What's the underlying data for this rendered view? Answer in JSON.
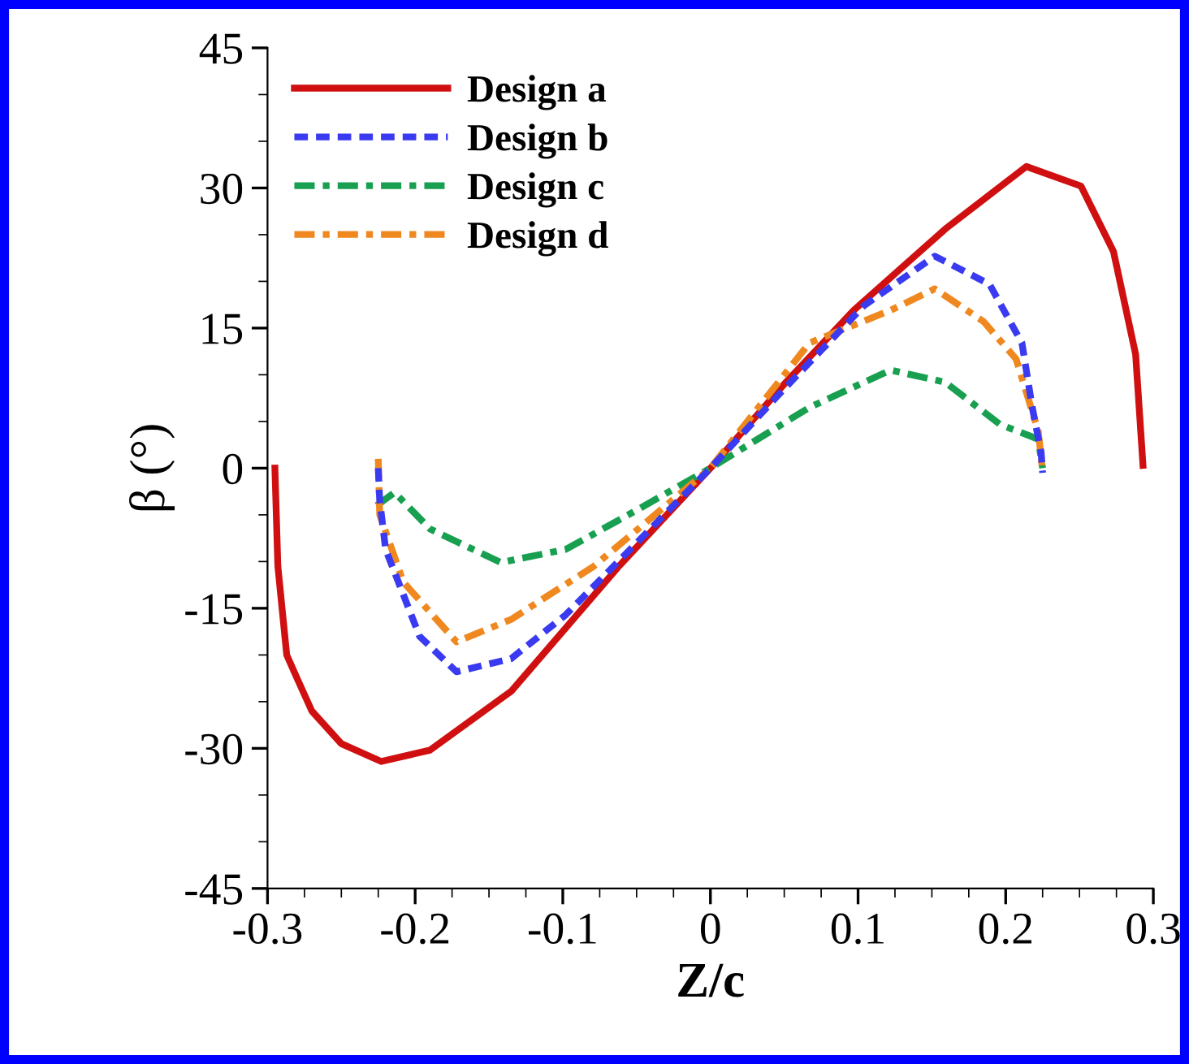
{
  "chart_data": {
    "type": "line",
    "xlabel": "Z/c",
    "ylabel": "β (°)",
    "xlim": [
      -0.3,
      0.3
    ],
    "xticks": [
      -0.3,
      -0.2,
      -0.1,
      0,
      0.1,
      0.2,
      0.3
    ],
    "ylim": [
      -45,
      45
    ],
    "yticks": [
      -45,
      -30,
      -15,
      0,
      15,
      30,
      45
    ],
    "grid": false,
    "legend": "top left",
    "marker": "none",
    "series": [
      {
        "name": "Design a",
        "color": "#d01010",
        "line_style": "solid",
        "x": [
          -0.295,
          -0.293,
          -0.287,
          -0.28,
          -0.27,
          -0.25,
          -0.223,
          -0.19,
          -0.135,
          -0.062,
          0,
          0.05,
          0.097,
          0.159,
          0.214,
          0.251,
          0.273,
          0.288,
          0.293
        ],
        "values": [
          0,
          -10.5,
          -20,
          -22.5,
          -26,
          -29.5,
          -31.4,
          -30.2,
          -23.9,
          -10.5,
          0,
          9,
          16.9,
          25.6,
          32.3,
          30.2,
          23.2,
          12.2,
          0.3
        ]
      },
      {
        "name": "Design b",
        "color": "#3a3af0",
        "line_style": "dashed",
        "x": [
          -0.225,
          -0.224,
          -0.22,
          -0.197,
          -0.172,
          -0.135,
          -0.098,
          -0.05,
          0,
          0.05,
          0.104,
          0.152,
          0.189,
          0.211,
          0.218,
          0.224,
          0.225
        ],
        "values": [
          0,
          -3.5,
          -8.7,
          -18,
          -21.8,
          -20.4,
          -15.7,
          -8,
          0,
          8.5,
          17.4,
          22.7,
          19.7,
          13.4,
          6.5,
          1.7,
          -0.5
        ]
      },
      {
        "name": "Design c",
        "color": "#18a050",
        "line_style": "dashdot",
        "x": [
          -0.226,
          -0.214,
          -0.19,
          -0.142,
          -0.098,
          -0.05,
          0,
          0.067,
          0.122,
          0.159,
          0.196,
          0.222,
          0.225
        ],
        "values": [
          -4,
          -2.6,
          -6.5,
          -10.1,
          -8.7,
          -4.5,
          0,
          6.5,
          10.5,
          9.2,
          4.7,
          3.1,
          0
        ]
      },
      {
        "name": "Design d",
        "color": "#f08820",
        "line_style": "dashdot",
        "x": [
          -0.225,
          -0.224,
          -0.208,
          -0.172,
          -0.135,
          -0.079,
          0,
          0.067,
          0.122,
          0.152,
          0.185,
          0.207,
          0.222,
          0.225
        ],
        "values": [
          1,
          -5,
          -12.2,
          -18.6,
          -16.2,
          -10.5,
          0,
          13.4,
          16.9,
          19.2,
          15.7,
          11.7,
          4,
          -0.3
        ]
      }
    ]
  }
}
